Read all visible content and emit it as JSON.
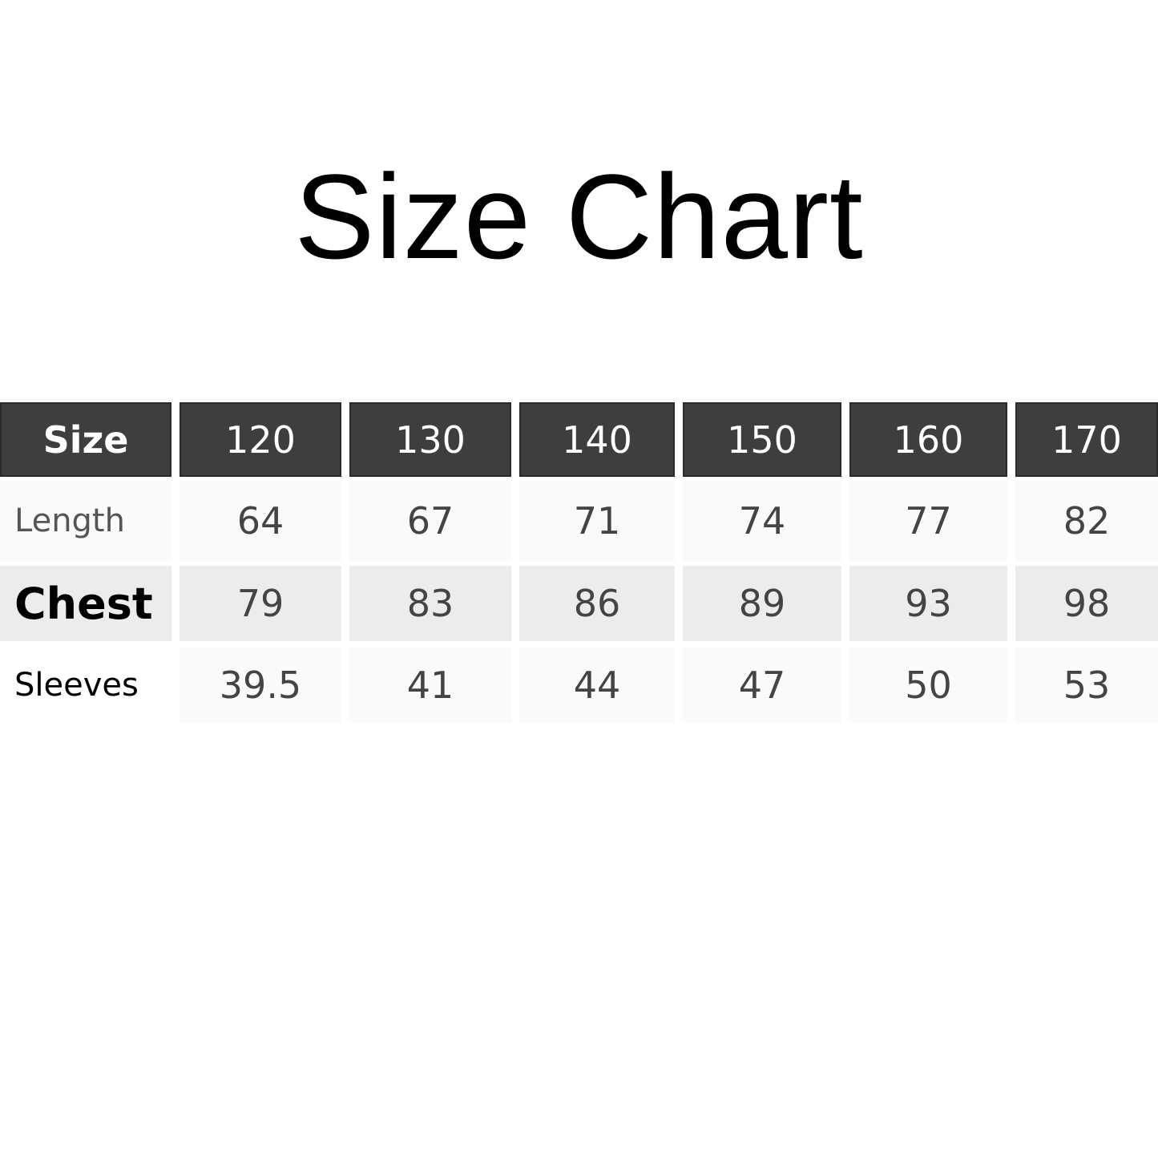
{
  "title": "Size Chart",
  "table": {
    "header": [
      "Size",
      "120",
      "130",
      "140",
      "150",
      "160",
      "170"
    ],
    "rows": [
      {
        "label": "Length",
        "values": [
          "64",
          "67",
          "71",
          "74",
          "77",
          "82"
        ]
      },
      {
        "label": "Chest",
        "values": [
          "79",
          "83",
          "86",
          "89",
          "93",
          "98"
        ]
      },
      {
        "label": "Sleeves",
        "values": [
          "39.5",
          "41",
          "44",
          "47",
          "50",
          "53"
        ]
      }
    ]
  },
  "colors": {
    "header_bg": "#3e3e3e",
    "header_text": "#ffffff",
    "row_light": "#fafafa",
    "row_shaded": "#ececec"
  }
}
